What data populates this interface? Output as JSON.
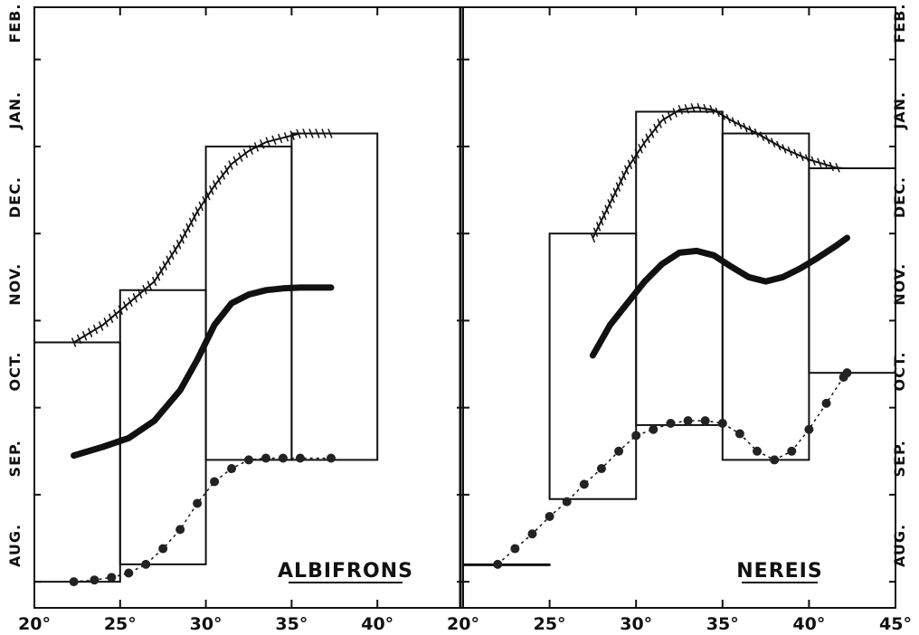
{
  "chart_data": [
    {
      "type": "line",
      "title": "ALBIFRONS",
      "xlabel": "",
      "ylabel": "",
      "xlim": [
        20,
        45
      ],
      "x_ticks": [
        20,
        25,
        30,
        35,
        40
      ],
      "x_tick_labels": [
        "20°",
        "25°",
        "30°",
        "35°",
        "40°"
      ],
      "y_labels": [
        "AUG.",
        "SEP.",
        "OCT.",
        "NOV.",
        "DEC.",
        "JAN.",
        "FEB."
      ],
      "y_unit": "month index (0 = AUG., 6 = FEB.)",
      "ylim": [
        -0.3,
        6.6
      ],
      "boxes": [
        {
          "x0": 20,
          "x1": 25,
          "y0": 0.0,
          "y1": 2.75
        },
        {
          "x0": 25,
          "x1": 30,
          "y0": 0.2,
          "y1": 3.35
        },
        {
          "x0": 30,
          "x1": 35,
          "y0": 1.4,
          "y1": 5.0
        },
        {
          "x0": 35,
          "x1": 40,
          "y0": 1.4,
          "y1": 5.15
        }
      ],
      "series": [
        {
          "style": "hatched",
          "x": [
            22.3,
            24,
            25.5,
            27,
            28.5,
            29.5,
            30.5,
            31.5,
            32.5,
            33.5,
            34.5,
            35.5,
            37.5
          ],
          "y": [
            2.75,
            2.95,
            3.2,
            3.45,
            3.9,
            4.25,
            4.55,
            4.8,
            4.95,
            5.05,
            5.1,
            5.15,
            5.15
          ]
        },
        {
          "style": "solid",
          "x": [
            22.3,
            24,
            25.5,
            27,
            28.5,
            29.5,
            30.5,
            31.5,
            32.5,
            33.5,
            34.5,
            35.5,
            37.3
          ],
          "y": [
            1.45,
            1.55,
            1.65,
            1.85,
            2.2,
            2.55,
            2.95,
            3.2,
            3.3,
            3.35,
            3.37,
            3.38,
            3.38
          ]
        },
        {
          "style": "dotted",
          "x": [
            22.3,
            23.5,
            24.5,
            25.5,
            26.5,
            27.5,
            28.5,
            29.5,
            30.5,
            31.5,
            32.5,
            33.5,
            34.5,
            35.5,
            37.3
          ],
          "y": [
            0.0,
            0.02,
            0.05,
            0.1,
            0.2,
            0.38,
            0.6,
            0.9,
            1.15,
            1.3,
            1.4,
            1.42,
            1.42,
            1.42,
            1.42
          ]
        }
      ]
    },
    {
      "type": "line",
      "title": "NEREIS",
      "xlabel": "",
      "ylabel": "",
      "xlim": [
        20,
        45
      ],
      "x_ticks": [
        20,
        25,
        30,
        35,
        40,
        45
      ],
      "x_tick_labels": [
        "20°",
        "25°",
        "30°",
        "35°",
        "40°",
        "45°"
      ],
      "y_labels": [
        "AUG.",
        "SEP.",
        "OCT.",
        "NOV.",
        "DEC.",
        "JAN.",
        "FEB."
      ],
      "y_unit": "month index (0 = AUG., 6 = FEB.)",
      "ylim": [
        -0.3,
        6.6
      ],
      "boxes": [
        {
          "x0": 20,
          "x1": 25,
          "y0": 0.2,
          "y1": 0.2
        },
        {
          "x0": 25,
          "x1": 30,
          "y0": 0.95,
          "y1": 4.0
        },
        {
          "x0": 30,
          "x1": 35,
          "y0": 1.8,
          "y1": 5.4
        },
        {
          "x0": 35,
          "x1": 40,
          "y0": 1.4,
          "y1": 5.15
        },
        {
          "x0": 40,
          "x1": 45,
          "y0": 2.4,
          "y1": 4.75
        }
      ],
      "series": [
        {
          "style": "hatched",
          "x": [
            27.5,
            28.5,
            29.5,
            30.5,
            31.5,
            32.5,
            33.5,
            34.5,
            35.5,
            37,
            38.5,
            40,
            41.5,
            42
          ],
          "y": [
            3.95,
            4.35,
            4.75,
            5.05,
            5.3,
            5.42,
            5.45,
            5.42,
            5.3,
            5.15,
            4.98,
            4.85,
            4.76,
            4.75
          ]
        },
        {
          "style": "solid",
          "x": [
            27.5,
            28.5,
            29.5,
            30.5,
            31.5,
            32.5,
            33.5,
            34.5,
            35.5,
            36.5,
            37.5,
            38.5,
            39.5,
            40.5,
            41.5,
            42.2
          ],
          "y": [
            2.6,
            2.95,
            3.2,
            3.45,
            3.65,
            3.78,
            3.8,
            3.75,
            3.62,
            3.5,
            3.45,
            3.5,
            3.6,
            3.72,
            3.85,
            3.95
          ]
        },
        {
          "style": "dotted",
          "x": [
            22,
            23,
            24,
            25,
            26,
            27,
            28,
            29,
            30,
            31,
            32,
            33,
            34,
            35,
            36,
            37,
            38,
            39,
            40,
            41,
            42,
            42.2
          ],
          "y": [
            0.2,
            0.38,
            0.55,
            0.75,
            0.92,
            1.12,
            1.3,
            1.5,
            1.68,
            1.75,
            1.82,
            1.85,
            1.85,
            1.82,
            1.7,
            1.5,
            1.4,
            1.5,
            1.75,
            2.05,
            2.35,
            2.4
          ]
        }
      ]
    }
  ]
}
